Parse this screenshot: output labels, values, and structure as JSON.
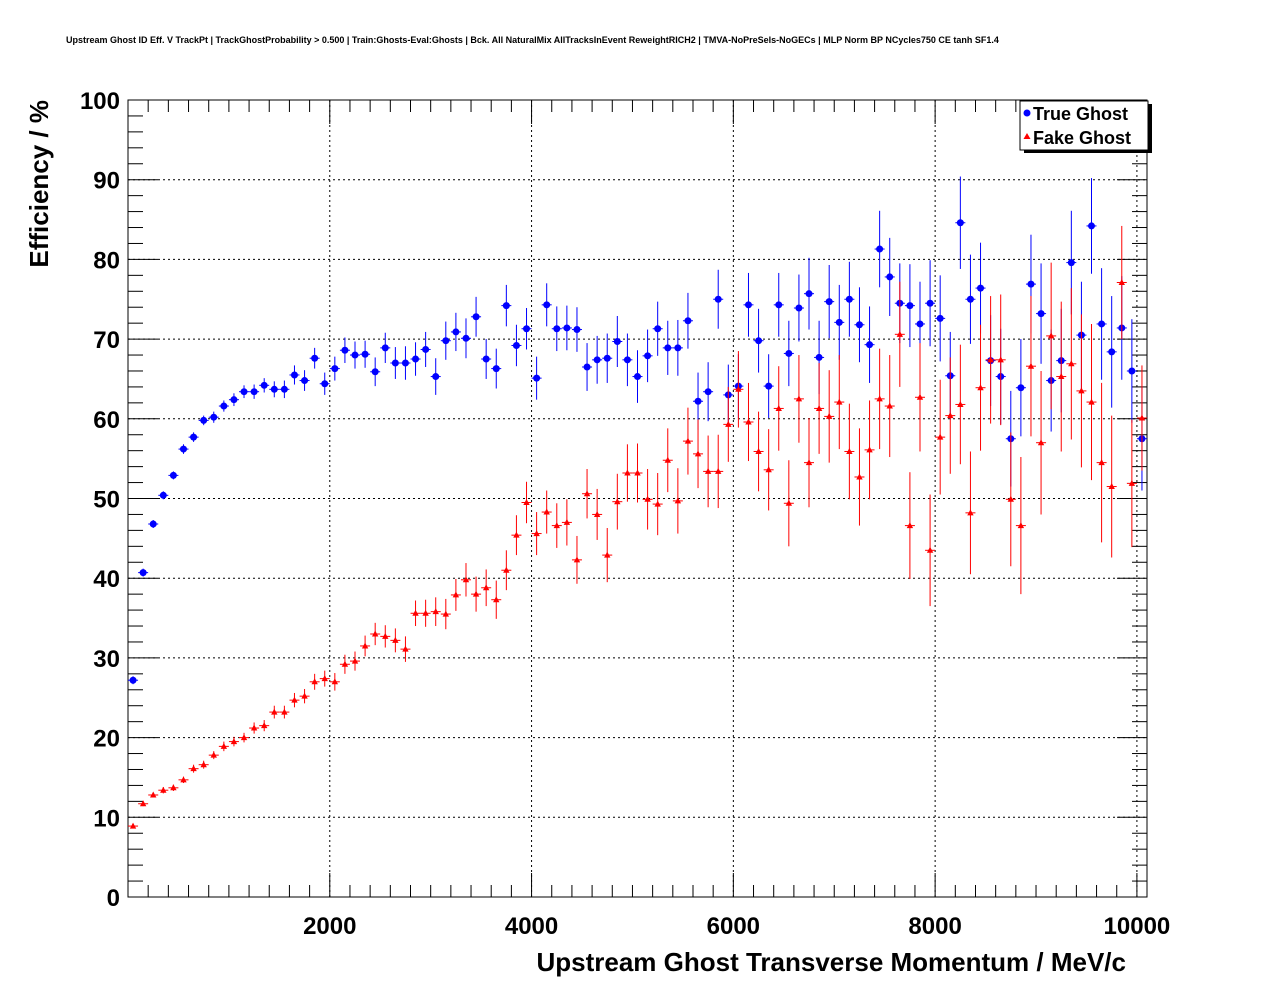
{
  "chart_data": {
    "type": "scatter",
    "title": "Upstream Ghost ID Eff. V TrackPt | TrackGhostProbability > 0.500 | Train:Ghosts-Eval:Ghosts | Bck. All NaturalMix AllTracksInEvent ReweightRICH2 | TMVA-NoPreSels-NoGECs | MLP Norm BP NCycles750 CE tanh SF1.4",
    "xlabel": "Upstream Ghost Transverse Momentum / MeV/c",
    "ylabel": "Efficiency / %",
    "xlim": [
      0,
      10100
    ],
    "ylim": [
      0,
      100
    ],
    "x_ticks": [
      2000,
      4000,
      6000,
      8000,
      10000
    ],
    "y_ticks": [
      0,
      10,
      20,
      30,
      40,
      50,
      60,
      70,
      80,
      90,
      100
    ],
    "grid": true,
    "legend_position": "top-right",
    "series": [
      {
        "name": "True Ghost",
        "color": "#0000ff",
        "marker": "circle",
        "x": [
          50,
          150,
          250,
          350,
          450,
          550,
          650,
          750,
          850,
          950,
          1050,
          1150,
          1250,
          1350,
          1450,
          1550,
          1650,
          1750,
          1850,
          1950,
          2050,
          2150,
          2250,
          2350,
          2450,
          2550,
          2650,
          2750,
          2850,
          2950,
          3050,
          3150,
          3250,
          3350,
          3450,
          3550,
          3650,
          3750,
          3850,
          3950,
          4050,
          4150,
          4250,
          4350,
          4450,
          4550,
          4650,
          4750,
          4850,
          4950,
          5050,
          5150,
          5250,
          5350,
          5450,
          5550,
          5650,
          5750,
          5850,
          5950,
          6050,
          6150,
          6250,
          6350,
          6450,
          6550,
          6650,
          6750,
          6850,
          6950,
          7050,
          7150,
          7250,
          7350,
          7450,
          7550,
          7650,
          7750,
          7850,
          7950,
          8050,
          8150,
          8250,
          8350,
          8450,
          8550,
          8650,
          8750,
          8850,
          8950,
          9050,
          9150,
          9250,
          9350,
          9450,
          9550,
          9650,
          9750,
          9850,
          9950,
          10050
        ],
        "y": [
          27.2,
          40.7,
          46.8,
          50.4,
          52.9,
          56.2,
          57.7,
          59.8,
          60.2,
          61.6,
          62.4,
          63.4,
          63.4,
          64.2,
          63.7,
          63.7,
          65.5,
          64.8,
          67.6,
          64.4,
          66.3,
          68.6,
          68.0,
          68.1,
          65.9,
          68.9,
          67.0,
          67.0,
          67.5,
          68.7,
          65.3,
          69.8,
          70.9,
          70.1,
          72.8,
          67.5,
          66.3,
          74.2,
          69.2,
          71.3,
          65.1,
          74.3,
          71.3,
          71.4,
          71.2,
          66.5,
          67.4,
          67.6,
          69.7,
          67.4,
          65.3,
          67.9,
          71.3,
          68.9,
          68.9,
          72.3,
          62.2,
          63.4,
          75.0,
          63.0,
          64.1,
          74.3,
          69.8,
          64.1,
          74.3,
          68.2,
          73.9,
          75.7,
          67.7,
          74.7,
          72.1,
          75.0,
          71.8,
          69.3,
          81.3,
          77.8,
          74.5,
          74.2,
          71.9,
          74.5,
          72.6,
          65.4,
          84.6,
          75.0,
          76.4,
          67.3,
          65.3,
          57.5,
          63.9,
          76.9,
          73.2,
          64.8,
          67.3,
          79.6,
          70.5,
          84.2,
          71.9,
          68.4,
          71.4,
          66.0,
          57.5
        ],
        "err": [
          0.5,
          0.5,
          0.5,
          0.5,
          0.5,
          0.6,
          0.6,
          0.6,
          0.7,
          0.7,
          0.8,
          0.8,
          0.9,
          0.9,
          1.0,
          1.1,
          1.2,
          1.3,
          1.3,
          1.4,
          1.5,
          1.6,
          1.7,
          1.7,
          1.8,
          1.9,
          2.0,
          2.1,
          2.1,
          2.2,
          2.3,
          2.4,
          2.4,
          2.5,
          2.5,
          2.5,
          2.5,
          2.6,
          2.6,
          2.6,
          2.7,
          2.7,
          2.8,
          2.8,
          2.8,
          3.0,
          3.0,
          3.1,
          3.2,
          3.3,
          3.3,
          3.3,
          3.4,
          3.4,
          3.5,
          3.5,
          3.6,
          3.7,
          3.7,
          3.8,
          4.0,
          4.0,
          4.0,
          4.0,
          4.0,
          4.1,
          4.2,
          4.5,
          4.6,
          4.6,
          4.7,
          4.7,
          4.7,
          4.8,
          4.8,
          4.9,
          5.0,
          5.2,
          5.3,
          5.4,
          5.4,
          5.5,
          5.8,
          5.6,
          5.7,
          5.7,
          6.0,
          6.0,
          6.1,
          6.2,
          6.3,
          6.4,
          6.5,
          6.5,
          6.7,
          6.0,
          7.0,
          7.0,
          6.5,
          6.5,
          6.5
        ]
      },
      {
        "name": "Fake Ghost",
        "color": "#ff0000",
        "marker": "triangle",
        "x": [
          50,
          150,
          250,
          350,
          450,
          550,
          650,
          750,
          850,
          950,
          1050,
          1150,
          1250,
          1350,
          1450,
          1550,
          1650,
          1750,
          1850,
          1950,
          2050,
          2150,
          2250,
          2350,
          2450,
          2550,
          2650,
          2750,
          2850,
          2950,
          3050,
          3150,
          3250,
          3350,
          3450,
          3550,
          3650,
          3750,
          3850,
          3950,
          4050,
          4150,
          4250,
          4350,
          4450,
          4550,
          4650,
          4750,
          4850,
          4950,
          5050,
          5150,
          5250,
          5350,
          5450,
          5550,
          5650,
          5750,
          5850,
          5950,
          6050,
          6150,
          6250,
          6350,
          6450,
          6550,
          6650,
          6750,
          6850,
          6950,
          7050,
          7150,
          7250,
          7350,
          7450,
          7550,
          7650,
          7750,
          7850,
          7950,
          8050,
          8150,
          8250,
          8350,
          8450,
          8550,
          8650,
          8750,
          8850,
          8950,
          9050,
          9150,
          9250,
          9350,
          9450,
          9550,
          9650,
          9750,
          9850,
          9950,
          10050
        ],
        "y": [
          8.9,
          11.7,
          12.8,
          13.4,
          13.7,
          14.7,
          16.1,
          16.6,
          17.8,
          18.9,
          19.5,
          20.0,
          21.2,
          21.5,
          23.2,
          23.2,
          24.7,
          25.2,
          27.0,
          27.4,
          27.0,
          29.2,
          29.6,
          31.5,
          33.0,
          32.7,
          32.2,
          31.1,
          35.6,
          35.6,
          35.8,
          35.5,
          37.9,
          39.8,
          38.0,
          38.8,
          37.3,
          41.0,
          45.4,
          49.5,
          45.6,
          48.3,
          46.6,
          47.0,
          42.3,
          50.6,
          48.0,
          42.9,
          49.6,
          53.2,
          53.2,
          49.9,
          49.3,
          54.8,
          49.7,
          57.2,
          55.6,
          53.4,
          53.4,
          59.3,
          63.7,
          59.6,
          55.9,
          53.6,
          61.3,
          49.4,
          62.5,
          54.5,
          61.3,
          60.3,
          62.1,
          55.9,
          52.7,
          56.1,
          62.5,
          61.6,
          70.6,
          46.6,
          62.7,
          43.5,
          57.7,
          60.4,
          61.8,
          48.2,
          63.9,
          67.4,
          67.4,
          49.9,
          46.6,
          66.6,
          57.0,
          70.4,
          65.3,
          66.9,
          63.5,
          62.1,
          54.5,
          51.5,
          77.1,
          51.9,
          60.1
        ],
        "err": [
          0.3,
          0.3,
          0.3,
          0.4,
          0.4,
          0.4,
          0.5,
          0.5,
          0.5,
          0.6,
          0.6,
          0.6,
          0.7,
          0.7,
          0.8,
          0.8,
          0.9,
          0.9,
          1.0,
          1.0,
          1.1,
          1.2,
          1.2,
          1.3,
          1.4,
          1.4,
          1.5,
          1.6,
          1.6,
          1.7,
          1.8,
          1.9,
          2.0,
          2.1,
          2.2,
          2.3,
          2.4,
          2.5,
          2.5,
          2.6,
          2.7,
          2.7,
          2.8,
          2.9,
          3.0,
          3.1,
          3.2,
          3.4,
          3.5,
          3.6,
          3.7,
          3.8,
          3.9,
          4.0,
          4.1,
          4.2,
          4.3,
          4.5,
          4.6,
          4.7,
          4.8,
          4.9,
          5.0,
          5.1,
          5.3,
          5.4,
          5.5,
          5.6,
          5.7,
          5.8,
          5.9,
          6.0,
          6.1,
          6.2,
          6.3,
          6.4,
          6.6,
          6.7,
          6.8,
          7.0,
          7.2,
          7.3,
          7.5,
          7.7,
          7.9,
          8.0,
          8.2,
          8.4,
          8.6,
          8.8,
          9.0,
          9.2,
          9.4,
          9.5,
          9.6,
          9.8,
          10.0,
          8.9,
          7.1,
          8.0,
          6.6
        ]
      }
    ]
  }
}
